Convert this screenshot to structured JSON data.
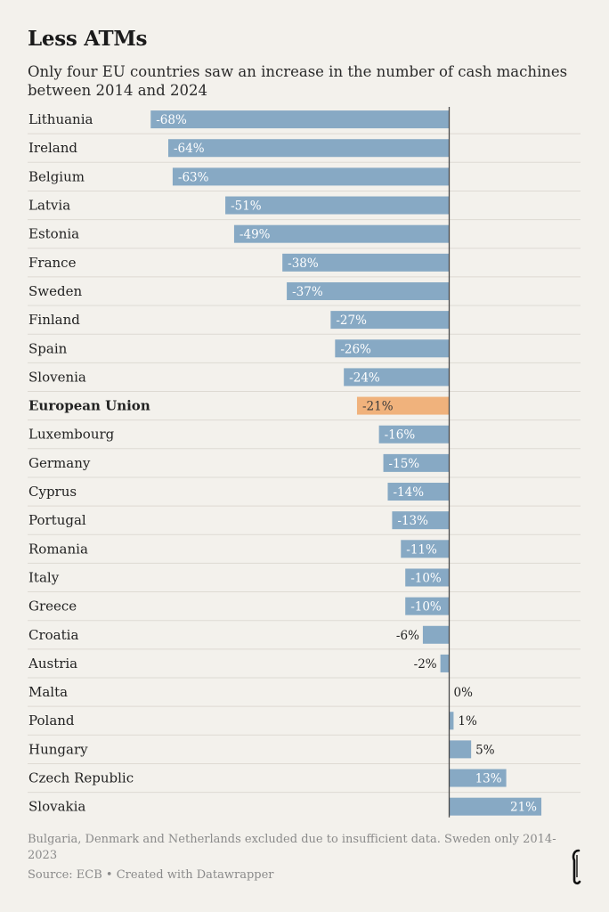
{
  "header": {
    "title": "Less ATMs",
    "subtitle": "Only four EU countries saw an increase in the number of cash machines between 2014 and 2024"
  },
  "footer": {
    "note": "Bulgaria, Denmark and Netherlands excluded due to insufficient data. Sweden only 2014-2023",
    "source": "Source: ECB • Created with Datawrapper"
  },
  "colors": {
    "bar": "#87a9c4",
    "highlight": "#f0b27c",
    "background": "#f3f1ec"
  },
  "chart_data": {
    "type": "bar",
    "orientation": "horizontal",
    "title": "Less ATMs",
    "subtitle": "Only four EU countries saw an increase in the number of cash machines between 2014 and 2024",
    "unit": "%",
    "highlighted_category": "European Union",
    "categories": [
      "Lithuania",
      "Ireland",
      "Belgium",
      "Latvia",
      "Estonia",
      "France",
      "Sweden",
      "Finland",
      "Spain",
      "Slovenia",
      "European Union",
      "Luxembourg",
      "Germany",
      "Cyprus",
      "Portugal",
      "Romania",
      "Italy",
      "Greece",
      "Croatia",
      "Austria",
      "Malta",
      "Poland",
      "Hungary",
      "Czech Republic",
      "Slovakia"
    ],
    "values": [
      -68,
      -64,
      -63,
      -51,
      -49,
      -38,
      -37,
      -27,
      -26,
      -24,
      -21,
      -16,
      -15,
      -14,
      -13,
      -11,
      -10,
      -10,
      -6,
      -2,
      0,
      1,
      5,
      13,
      21
    ],
    "labels": [
      "-68%",
      "-64%",
      "-63%",
      "-51%",
      "-49%",
      "-38%",
      "-37%",
      "-27%",
      "-26%",
      "-24%",
      "-21%",
      "-16%",
      "-15%",
      "-14%",
      "-13%",
      "-11%",
      "-10%",
      "-10%",
      "-6%",
      "-2%",
      "0%",
      "1%",
      "5%",
      "13%",
      "21%"
    ],
    "xlim": [
      -68,
      21
    ],
    "grid": false,
    "legend": "none"
  }
}
